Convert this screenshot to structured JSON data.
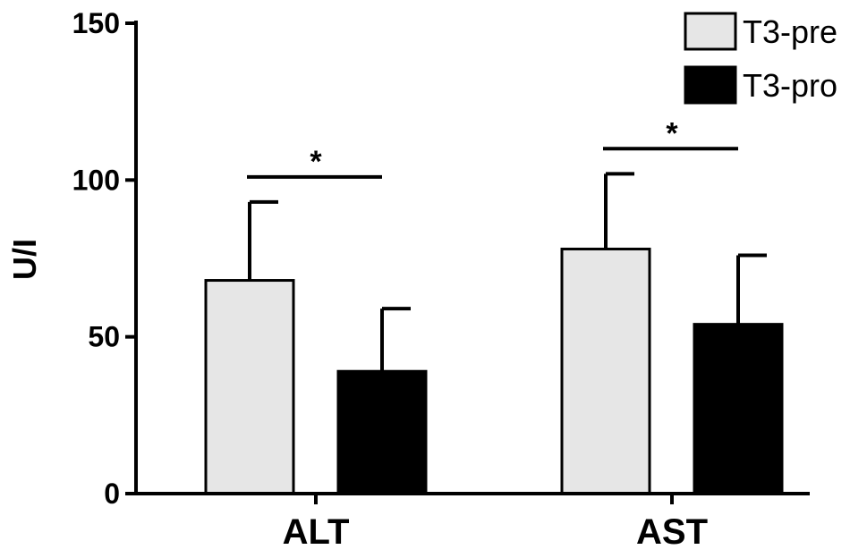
{
  "chart_data": {
    "type": "bar",
    "title": "",
    "xlabel": "",
    "ylabel": "U/I",
    "ylim": [
      0,
      150
    ],
    "yticks": [
      0,
      50,
      100,
      150
    ],
    "categories": [
      "ALT",
      "AST"
    ],
    "series": [
      {
        "name": "T3-pre",
        "color": "#e6e6e6",
        "values": [
          68,
          78
        ],
        "errors": [
          25,
          24
        ]
      },
      {
        "name": "T3-pro",
        "color": "#000000",
        "values": [
          39,
          54
        ],
        "errors": [
          20,
          22
        ]
      }
    ],
    "significance": [
      {
        "category": "ALT",
        "label": "*",
        "level": 101
      },
      {
        "category": "AST",
        "label": "*",
        "level": 110
      }
    ],
    "legend_position": "top-right",
    "grid": false
  }
}
